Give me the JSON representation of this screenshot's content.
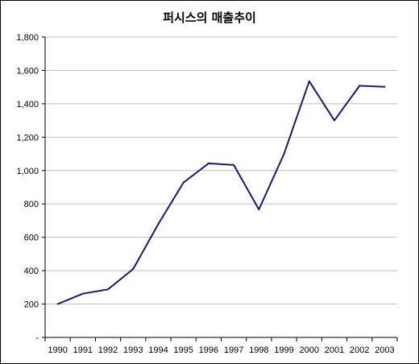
{
  "chart_data": {
    "type": "line",
    "title": "퍼시스의 매출추이",
    "xlabel": "",
    "ylabel": "",
    "categories": [
      "1990",
      "1991",
      "1992",
      "1993",
      "1994",
      "1995",
      "1996",
      "1997",
      "1998",
      "1999",
      "2000",
      "2001",
      "2002",
      "2003"
    ],
    "series": [
      {
        "values": [
          200,
          262,
          288,
          410,
          680,
          928,
          1043,
          1033,
          767,
          1100,
          1535,
          1300,
          1508,
          1502
        ]
      }
    ],
    "yticks": [
      "-",
      "200",
      "400",
      "600",
      "800",
      "1,000",
      "1,200",
      "1,400",
      "1,600",
      "1,800"
    ],
    "ylim": [
      0,
      1800
    ],
    "grid": true,
    "legend": "none",
    "colors": {
      "line": "#1a1a6e",
      "grid": "#c0c0c0",
      "axis": "#000000"
    }
  }
}
